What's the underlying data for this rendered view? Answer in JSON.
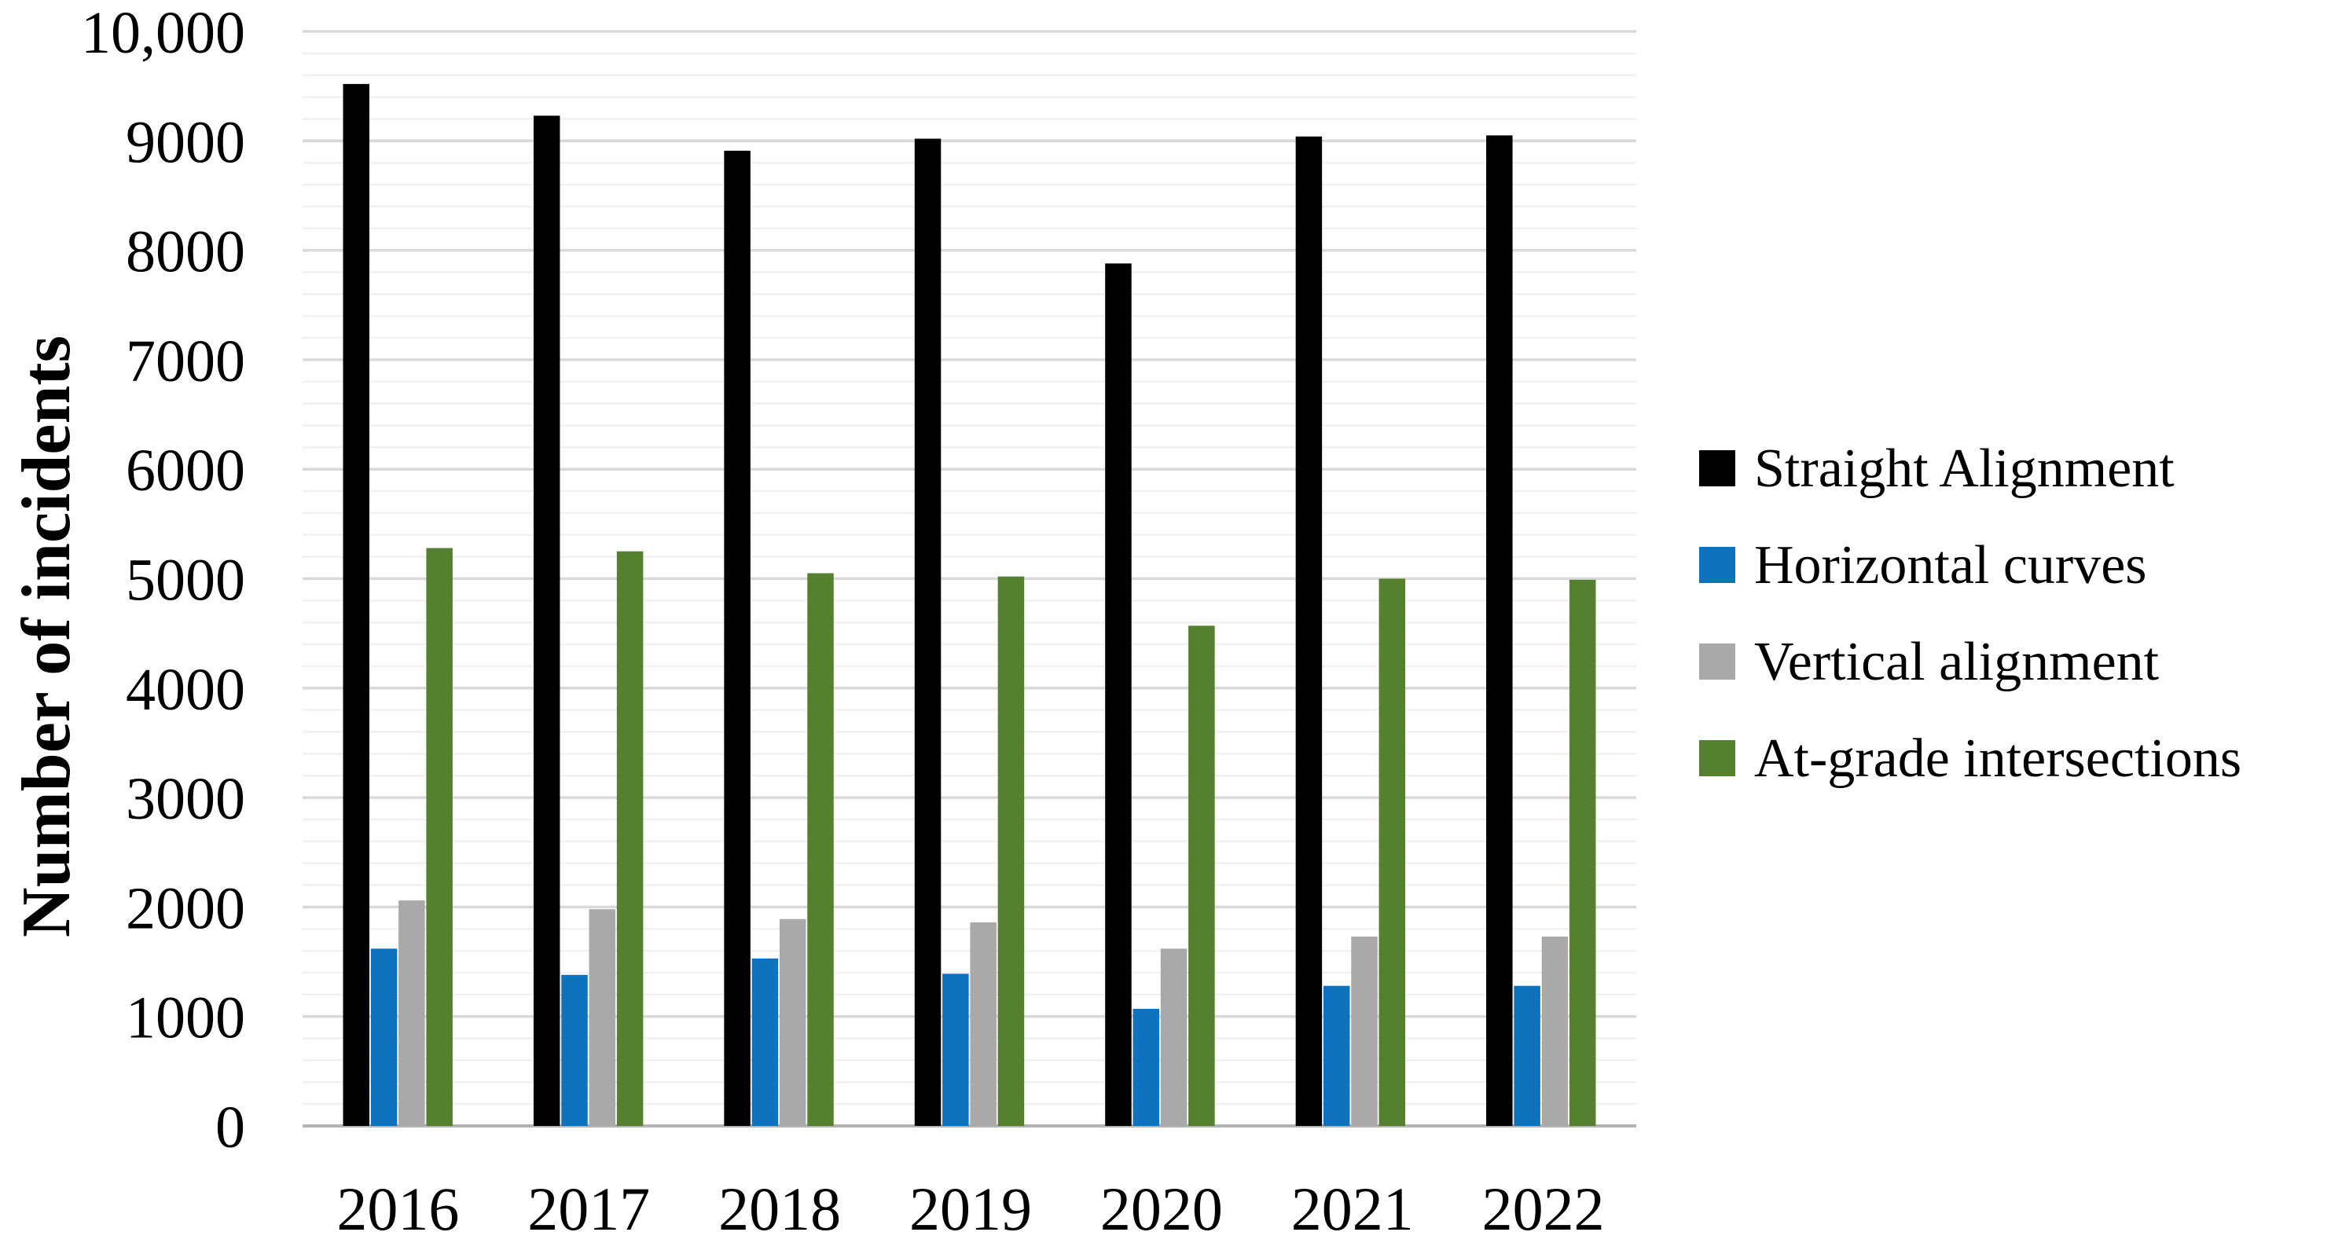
{
  "chart_data": {
    "type": "bar",
    "title": "",
    "xlabel": "",
    "ylabel": "Number of incidents",
    "categories": [
      "2016",
      "2017",
      "2018",
      "2019",
      "2020",
      "2021",
      "2022"
    ],
    "series": [
      {
        "name": "Straight Alignment",
        "color": "#000000",
        "values": [
          9520,
          9230,
          8910,
          9020,
          7880,
          9040,
          9050
        ]
      },
      {
        "name": "Horizontal curves",
        "color": "#0E72BD",
        "values": [
          1620,
          1380,
          1530,
          1390,
          1070,
          1280,
          1280
        ]
      },
      {
        "name": "Vertical alignment",
        "color": "#A9A9A9",
        "values": [
          2060,
          1980,
          1890,
          1860,
          1620,
          1730,
          1730
        ]
      },
      {
        "name": "At-grade intersections",
        "color": "#54802F",
        "values": [
          5280,
          5250,
          5050,
          5020,
          4570,
          5000,
          4990
        ]
      }
    ],
    "y_axis": {
      "min": 0,
      "max": 10000,
      "major_step": 1000,
      "minor_step": 200,
      "tick_labels": [
        "0",
        "1000",
        "2000",
        "3000",
        "4000",
        "5000",
        "6000",
        "7000",
        "8000",
        "9000",
        "10,000"
      ]
    },
    "grid": {
      "show_major": true,
      "show_minor": true,
      "major_color": "#D9D9D9",
      "minor_color": "#F1F1F1",
      "axis_line_color": "#B3B3B3"
    },
    "legend_position": "right"
  }
}
